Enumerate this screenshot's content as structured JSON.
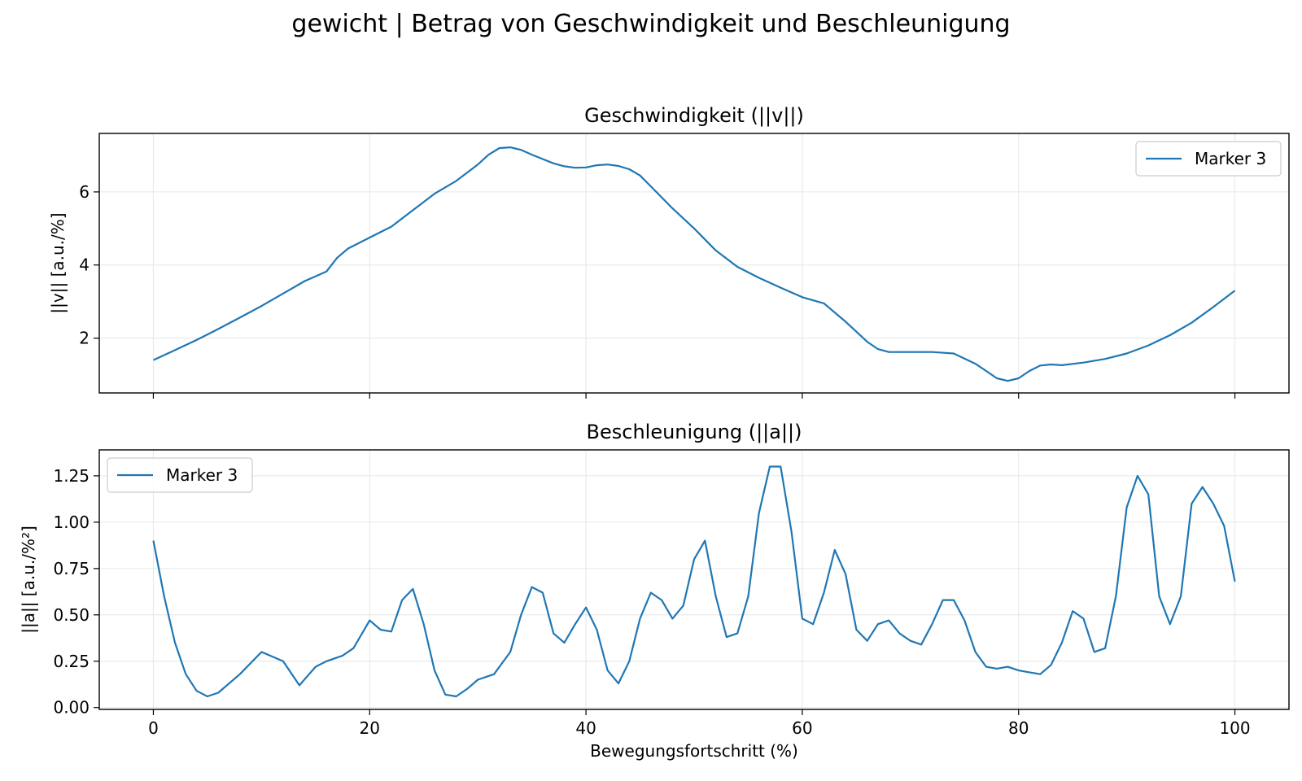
{
  "figure": {
    "title": "gewicht | Betrag von Geschwindigkeit und Beschleunigung"
  },
  "chart_data": [
    {
      "type": "line",
      "title": "Geschwindigkeit (||v||)",
      "xlabel": "",
      "ylabel": "||v|| [a.u./%]",
      "xlim": [
        -5,
        105
      ],
      "ylim": [
        0.5,
        7.6
      ],
      "xticks": [
        0,
        20,
        40,
        60,
        80,
        100
      ],
      "xtick_labels_visible": false,
      "yticks": [
        2,
        4,
        6
      ],
      "grid": true,
      "legend_position": "top-right",
      "series": [
        {
          "name": "Marker 3",
          "color": "#1f77b4",
          "x": [
            0,
            2,
            4,
            6,
            8,
            10,
            12,
            14,
            16,
            17,
            18,
            20,
            22,
            24,
            26,
            28,
            30,
            31,
            32,
            33,
            34,
            35,
            36,
            37,
            38,
            39,
            40,
            41,
            42,
            43,
            44,
            45,
            46,
            48,
            50,
            52,
            54,
            56,
            58,
            60,
            62,
            64,
            66,
            67,
            68,
            70,
            72,
            74,
            76,
            77,
            78,
            79,
            80,
            81,
            82,
            83,
            84,
            86,
            88,
            90,
            92,
            94,
            96,
            98,
            100
          ],
          "y": [
            1.4,
            1.67,
            1.95,
            2.25,
            2.56,
            2.88,
            3.22,
            3.56,
            3.82,
            4.2,
            4.45,
            4.75,
            5.05,
            5.5,
            5.95,
            6.3,
            6.75,
            7.02,
            7.2,
            7.22,
            7.15,
            7.02,
            6.9,
            6.78,
            6.7,
            6.66,
            6.67,
            6.73,
            6.75,
            6.71,
            6.62,
            6.45,
            6.15,
            5.55,
            5.0,
            4.4,
            3.95,
            3.65,
            3.38,
            3.12,
            2.95,
            2.45,
            1.9,
            1.7,
            1.62,
            1.62,
            1.62,
            1.58,
            1.3,
            1.1,
            0.9,
            0.83,
            0.9,
            1.1,
            1.25,
            1.28,
            1.26,
            1.33,
            1.43,
            1.58,
            1.8,
            2.08,
            2.42,
            2.85,
            3.3
          ]
        }
      ]
    },
    {
      "type": "line",
      "title": "Beschleunigung (||a||)",
      "xlabel": "Bewegungsfortschritt (%)",
      "ylabel": "||a|| [a.u./%²]",
      "xlim": [
        -5,
        105
      ],
      "ylim": [
        -0.01,
        1.39
      ],
      "xticks": [
        0,
        20,
        40,
        60,
        80,
        100
      ],
      "yticks": [
        0.0,
        0.25,
        0.5,
        0.75,
        1.0,
        1.25
      ],
      "ytick_labels": [
        "0.00",
        "0.25",
        "0.50",
        "0.75",
        "1.00",
        "1.25"
      ],
      "grid": true,
      "legend_position": "top-left",
      "series": [
        {
          "name": "Marker 3",
          "color": "#1f77b4",
          "x": [
            0,
            1,
            2,
            3,
            4,
            5,
            6,
            8,
            10,
            12,
            13.5,
            15,
            16,
            17.5,
            18.5,
            20,
            21,
            22,
            23,
            24,
            25,
            26,
            27,
            28,
            29,
            30,
            31.5,
            33,
            34,
            35,
            36,
            37,
            38,
            39,
            40,
            41,
            42,
            43,
            44,
            45,
            46,
            47,
            48,
            49,
            50,
            51,
            52,
            53,
            54,
            55,
            56,
            57,
            58,
            59,
            60,
            61,
            62,
            63,
            64,
            65,
            66,
            67,
            68,
            69,
            70,
            71,
            72,
            73,
            74,
            75,
            76,
            77,
            78,
            79,
            80,
            81,
            82,
            83,
            84,
            85,
            86,
            87,
            88,
            89,
            90,
            91,
            92,
            93,
            94,
            95,
            96,
            97,
            98,
            99,
            100
          ],
          "y": [
            0.9,
            0.6,
            0.35,
            0.18,
            0.09,
            0.06,
            0.08,
            0.18,
            0.3,
            0.25,
            0.12,
            0.22,
            0.25,
            0.28,
            0.32,
            0.47,
            0.42,
            0.41,
            0.58,
            0.64,
            0.45,
            0.2,
            0.07,
            0.06,
            0.1,
            0.15,
            0.18,
            0.3,
            0.5,
            0.65,
            0.62,
            0.4,
            0.35,
            0.45,
            0.54,
            0.42,
            0.2,
            0.13,
            0.25,
            0.48,
            0.62,
            0.58,
            0.48,
            0.55,
            0.8,
            0.9,
            0.6,
            0.38,
            0.4,
            0.6,
            1.05,
            1.3,
            1.3,
            0.95,
            0.48,
            0.45,
            0.62,
            0.85,
            0.72,
            0.42,
            0.36,
            0.45,
            0.47,
            0.4,
            0.36,
            0.34,
            0.45,
            0.58,
            0.58,
            0.47,
            0.3,
            0.22,
            0.21,
            0.22,
            0.2,
            0.19,
            0.18,
            0.23,
            0.35,
            0.52,
            0.48,
            0.3,
            0.32,
            0.6,
            1.08,
            1.25,
            1.15,
            0.6,
            0.45,
            0.6,
            1.1,
            1.19,
            1.1,
            0.98,
            0.68
          ]
        }
      ]
    }
  ]
}
